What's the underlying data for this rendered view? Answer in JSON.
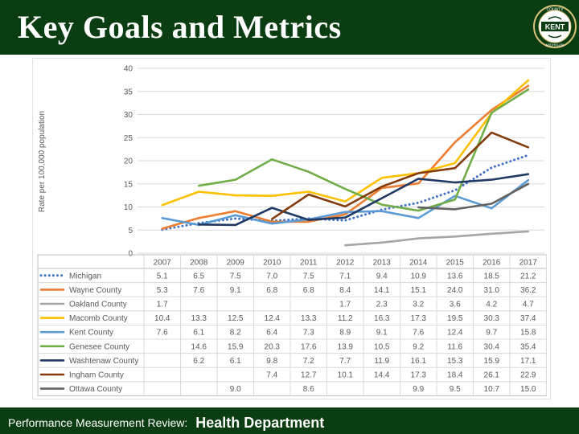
{
  "header": {
    "title": "Key Goals and Metrics"
  },
  "logo": {
    "top_text": "COUNTY",
    "center_text": "KENT",
    "bottom_text": "MICHIGAN"
  },
  "footer": {
    "label": "Performance Measurement Review:",
    "department": "Health Department"
  },
  "colors": {
    "header_bg": "#0b3d12",
    "grid": "#d9d9d9"
  },
  "chart_data": {
    "type": "line",
    "title": "",
    "xlabel": "",
    "ylabel": "Rate per 100,000 population",
    "ylim": [
      0,
      40
    ],
    "yticks": [
      0,
      5,
      10,
      15,
      20,
      25,
      30,
      35,
      40
    ],
    "x": [
      "2007",
      "2008",
      "2009",
      "2010",
      "2011",
      "2012",
      "2013",
      "2014",
      "2015",
      "2016",
      "2017"
    ],
    "legend": "data table below chart",
    "series": [
      {
        "name": "Michigan",
        "color": "#4472c4",
        "dash": "dot",
        "values": [
          "5.1",
          "6.5",
          "7.5",
          "7.0",
          "7.5",
          "7.1",
          "9.4",
          "10.9",
          "13.6",
          "18.5",
          "21.2"
        ]
      },
      {
        "name": "Wayne County",
        "color": "#ed7d31",
        "dash": "solid",
        "values": [
          "5.3",
          "7.6",
          "9.1",
          "6.8",
          "6.8",
          "8.4",
          "14.1",
          "15.1",
          "24.0",
          "31.0",
          "36.2"
        ]
      },
      {
        "name": "Oakland County",
        "color": "#a5a5a5",
        "dash": "solid",
        "values": [
          "1.7",
          "",
          "",
          "",
          "",
          "1.7",
          "2.3",
          "3.2",
          "3.6",
          "4.2",
          "4.7"
        ]
      },
      {
        "name": "Macomb County",
        "color": "#ffc000",
        "dash": "solid",
        "values": [
          "10.4",
          "13.3",
          "12.5",
          "12.4",
          "13.3",
          "11.2",
          "16.3",
          "17.3",
          "19.5",
          "30.3",
          "37.4"
        ]
      },
      {
        "name": "Kent County",
        "color": "#5b9bd5",
        "dash": "solid",
        "values": [
          "7.6",
          "6.1",
          "8.2",
          "6.4",
          "7.3",
          "8.9",
          "9.1",
          "7.6",
          "12.4",
          "9.7",
          "15.8"
        ]
      },
      {
        "name": "Genesee County",
        "color": "#70ad47",
        "dash": "solid",
        "values": [
          "",
          "14.6",
          "15.9",
          "20.3",
          "17.6",
          "13.9",
          "10.5",
          "9.2",
          "11.6",
          "30.4",
          "35.4"
        ]
      },
      {
        "name": "Washtenaw County",
        "color": "#203864",
        "dash": "solid",
        "values": [
          "",
          "6.2",
          "6.1",
          "9.8",
          "7.2",
          "7.7",
          "11.9",
          "16.1",
          "15.3",
          "15.9",
          "17.1"
        ]
      },
      {
        "name": "Ingham County",
        "color": "#843c0c",
        "dash": "solid",
        "values": [
          "",
          "",
          "",
          "7.4",
          "12.7",
          "10.1",
          "14.4",
          "17.3",
          "18.4",
          "26.1",
          "22.9"
        ]
      },
      {
        "name": "Ottawa County",
        "color": "#636363",
        "dash": "solid",
        "values": [
          "",
          "",
          "9.0",
          "",
          "8.6",
          "",
          "",
          "9.9",
          "9.5",
          "10.7",
          "15.0"
        ]
      }
    ]
  }
}
